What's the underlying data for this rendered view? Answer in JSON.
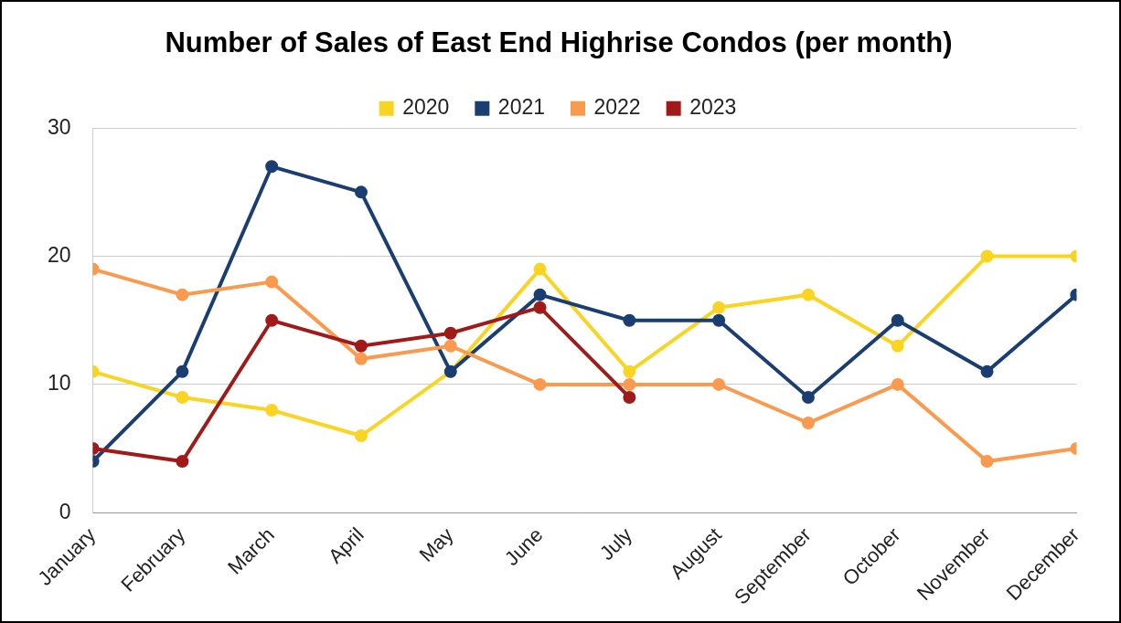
{
  "chart_data": {
    "type": "line",
    "title": "Number of Sales of East End Highrise Condos (per month)",
    "categories": [
      "January",
      "February",
      "March",
      "April",
      "May",
      "June",
      "July",
      "August",
      "September",
      "October",
      "November",
      "December"
    ],
    "series": [
      {
        "name": "2020",
        "color": "#f9d423",
        "values": [
          11,
          9,
          8,
          6,
          11,
          19,
          11,
          16,
          17,
          13,
          20,
          20
        ]
      },
      {
        "name": "2021",
        "color": "#1a3e72",
        "values": [
          4,
          11,
          27,
          25,
          11,
          17,
          15,
          15,
          9,
          15,
          11,
          17
        ]
      },
      {
        "name": "2022",
        "color": "#fa9a4f",
        "values": [
          19,
          17,
          18,
          12,
          13,
          10,
          10,
          10,
          7,
          10,
          4,
          5
        ]
      },
      {
        "name": "2023",
        "color": "#a01a1a",
        "values": [
          5,
          4,
          15,
          13,
          14,
          16,
          9,
          null,
          null,
          null,
          null,
          null
        ]
      }
    ],
    "ylim": [
      0,
      30
    ],
    "yticks": [
      0,
      10,
      20,
      30
    ],
    "grid": true,
    "legend": "top",
    "marker": "circle"
  }
}
